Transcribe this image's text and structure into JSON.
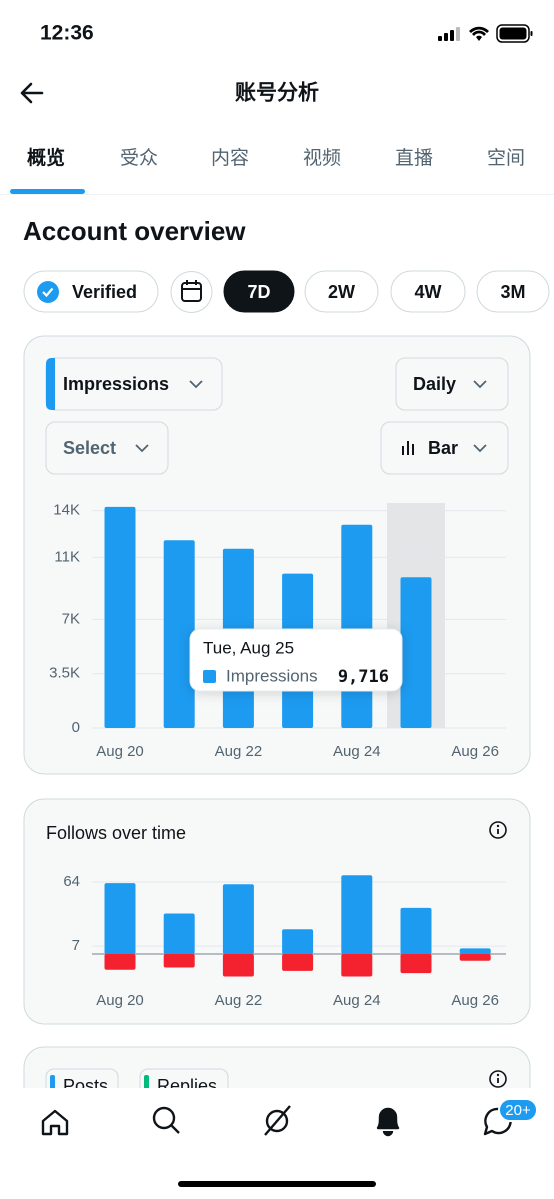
{
  "status_bar": {
    "time": "12:36"
  },
  "header": {
    "title": "账号分析"
  },
  "tabs": [
    "概览",
    "受众",
    "内容",
    "视频",
    "直播",
    "空间"
  ],
  "section_title": "Account overview",
  "filters": {
    "verified": "Verified",
    "ranges": [
      "7D",
      "2W",
      "4W",
      "3M"
    ]
  },
  "impressions_card": {
    "metric": "Impressions",
    "interval": "Daily",
    "select": "Select",
    "chart_kind": "Bar"
  },
  "chart_data": [
    {
      "type": "bar",
      "categories": [
        "Aug 20",
        null,
        "Aug 22",
        null,
        "Aug 24",
        null,
        "Aug 26"
      ],
      "series": [
        {
          "name": "Impressions",
          "color": "#1d9bf0",
          "values": [
            14250,
            12100,
            11550,
            9950,
            13100,
            9716,
            null
          ]
        }
      ],
      "ylim": [
        0,
        14500
      ],
      "yticks": [
        0,
        {
          "value": 3500,
          "label": "3.5K"
        },
        {
          "value": 7000,
          "label": "7K"
        },
        {
          "value": 11000,
          "label": "11K"
        },
        {
          "value": 14000,
          "label": "14K"
        }
      ],
      "grid": true,
      "tooltip": {
        "index": 5,
        "title": "Tue, Aug 25",
        "value_label": "9,716"
      }
    },
    {
      "type": "bar",
      "title": "Follows over time",
      "categories": [
        "Aug 20",
        null,
        "Aug 22",
        null,
        "Aug 24",
        null,
        "Aug 26"
      ],
      "series": [
        {
          "color": "#1d9bf0",
          "values": [
            63,
            36,
            62,
            22,
            70,
            41,
            5
          ]
        },
        {
          "color": "#f4212e",
          "values": [
            -14,
            -12,
            -20,
            -15,
            -20,
            -17,
            -6
          ]
        }
      ],
      "ylim": [
        -24,
        72
      ],
      "yticks": [
        7,
        64
      ],
      "grid": true
    }
  ],
  "posts_card": {
    "chips": [
      "Posts",
      "Replies"
    ]
  },
  "nav": {
    "badge": "20+"
  }
}
